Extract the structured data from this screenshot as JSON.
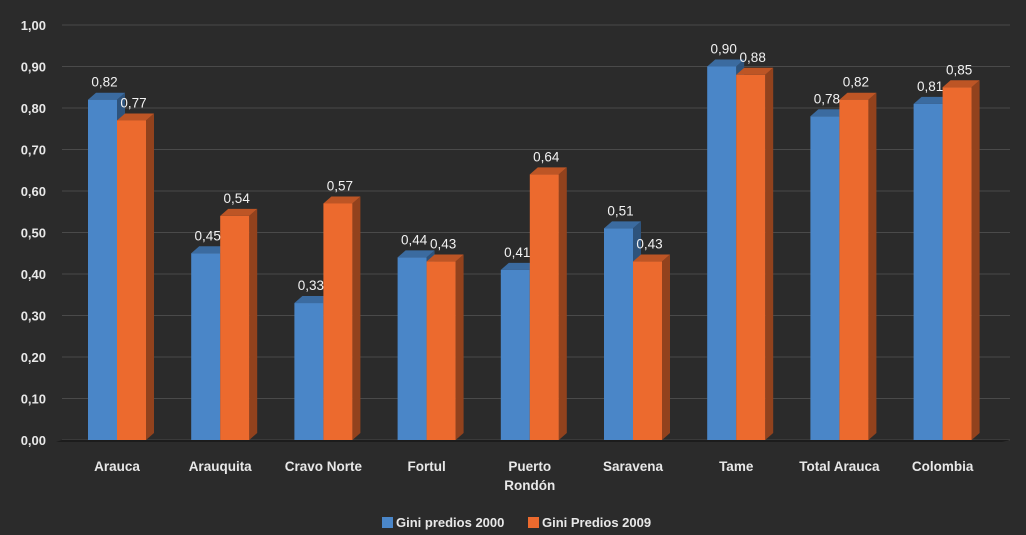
{
  "chart_data": {
    "type": "bar",
    "title": "",
    "xlabel": "",
    "ylabel": "",
    "categories": [
      "Arauca",
      "Arauquita",
      "Cravo Norte",
      "Fortul",
      "Puerto Rondón",
      "Saravena",
      "Tame",
      "Total Arauca",
      "Colombia"
    ],
    "series": [
      {
        "name": "Gini predios 2000",
        "values": [
          0.82,
          0.45,
          0.33,
          0.44,
          0.41,
          0.51,
          0.9,
          0.78,
          0.81
        ],
        "labels": [
          "0,82",
          "0,45",
          "0,33",
          "0,44",
          "0,41",
          "0,51",
          "0,90",
          "0,78",
          "0,81"
        ],
        "color": "#4a86c8"
      },
      {
        "name": "Gini Predios 2009",
        "values": [
          0.77,
          0.54,
          0.57,
          0.43,
          0.64,
          0.43,
          0.88,
          0.82,
          0.85
        ],
        "labels": [
          "0,77",
          "0,54",
          "0,57",
          "0,43",
          "0,64",
          "0,43",
          "0,88",
          "0,82",
          "0,85"
        ],
        "color": "#ec6a2e"
      }
    ],
    "ylim": [
      0,
      1.0
    ],
    "yticks": [
      "0,00",
      "0,10",
      "0,20",
      "0,30",
      "0,40",
      "0,50",
      "0,60",
      "0,70",
      "0,80",
      "0,90",
      "1,00"
    ],
    "grid": true,
    "legend": "bottom",
    "style": "3d-columns"
  }
}
